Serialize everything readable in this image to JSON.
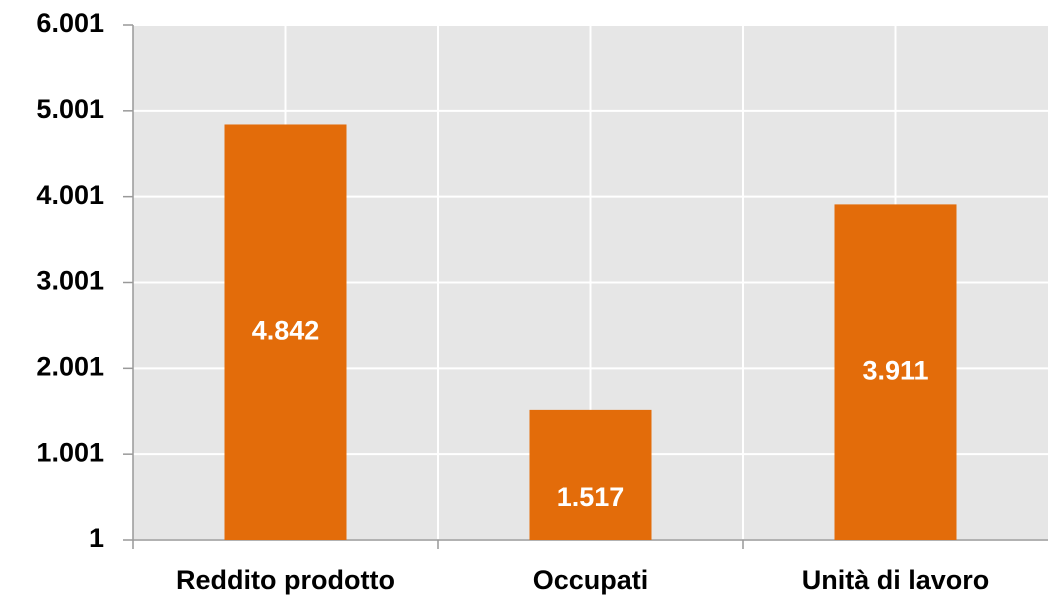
{
  "chart_data": {
    "type": "bar",
    "categories": [
      "Reddito prodotto",
      "Occupati",
      "Unità di lavoro"
    ],
    "values": [
      4842,
      1517,
      3911
    ],
    "value_labels": [
      "4.842",
      "1.517",
      "3.911"
    ],
    "color": "#e36c0a",
    "ylim": [
      1,
      6001
    ],
    "yticks": [
      1,
      {
        "value": 1001,
        "label": "1.001"
      },
      {
        "value": 2001,
        "label": "2.001"
      },
      {
        "value": 3001,
        "label": "3.001"
      },
      {
        "value": 4001,
        "label": "4.001"
      },
      {
        "value": 5001,
        "label": "5.001"
      },
      {
        "value": 6001,
        "label": "6.001"
      }
    ],
    "grid": true
  }
}
